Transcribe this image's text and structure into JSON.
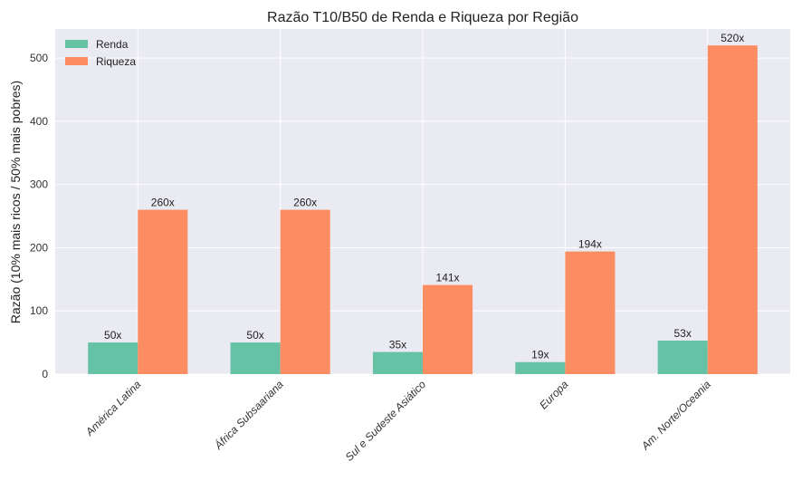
{
  "chart_data": {
    "type": "bar",
    "title": "Razão T10/B50 de Renda e Riqueza por Região",
    "xlabel": "",
    "ylabel": "Razão (10% mais ricos / 50% mais pobres)",
    "categories": [
      "América Latina",
      "África Subsaariana",
      "Sul e Sudeste Asiático",
      "Europa",
      "Am. Norte/Oceania"
    ],
    "series": [
      {
        "name": "Renda",
        "color": "#66c2a5",
        "values": [
          50,
          50,
          35,
          19,
          53
        ],
        "labels": [
          "50x",
          "50x",
          "35x",
          "19x",
          "53x"
        ]
      },
      {
        "name": "Riqueza",
        "color": "#fc8d62",
        "values": [
          260,
          260,
          141,
          194,
          520
        ],
        "labels": [
          "260x",
          "260x",
          "141x",
          "194x",
          "520x"
        ]
      }
    ],
    "ylim": [
      0,
      546
    ],
    "yticks": [
      "0",
      "100",
      "200",
      "300",
      "400",
      "500"
    ],
    "grid": true,
    "legend": "top-left",
    "background": "#eaeaf2"
  }
}
